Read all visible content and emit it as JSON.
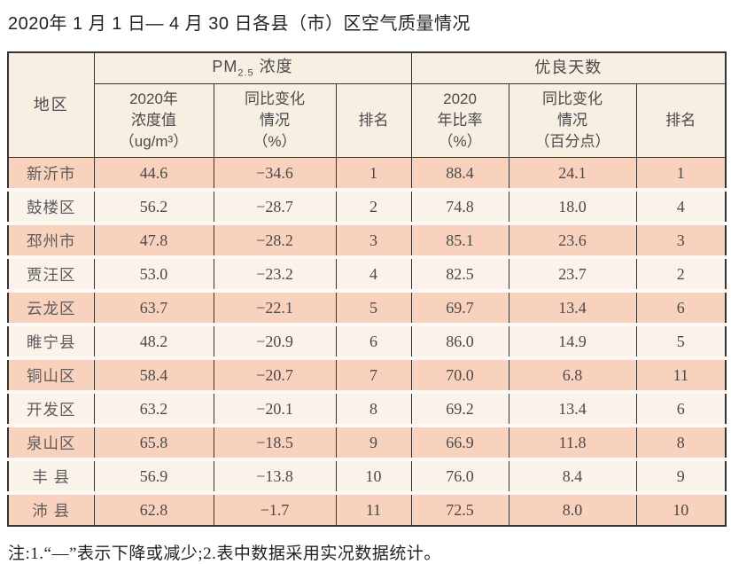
{
  "page": {
    "title": "2020年 1 月 1 日— 4 月 30 日各县（市）区空气质量情况",
    "footnote": "注:1.“—”表示下降或减少;2.表中数据采用实况数据统计。"
  },
  "colors": {
    "row_odd": "#f8d2bc",
    "row_even": "#fbf2ea",
    "header_bg": "#f8efe3",
    "border": "#343434"
  },
  "table": {
    "region_header": "地区",
    "group_headers": {
      "pm25": {
        "prefix": "PM",
        "sub": "2.5",
        "suffix": " 浓度"
      },
      "good_days": "优良天数"
    },
    "sub_headers": {
      "pm_value": "2020年\n浓度值\n（ug/m³）",
      "pm_change": "同比变化\n情况\n（%）",
      "pm_rank": "排名",
      "gd_ratio": "2020\n年比率\n（%）",
      "gd_change": "同比变化\n情况\n（百分点）",
      "gd_rank": "排名"
    },
    "rows": [
      {
        "region": "新沂市",
        "pm_value": "44.6",
        "pm_change": "−34.6",
        "pm_rank": "1",
        "gd_ratio": "88.4",
        "gd_change": "24.1",
        "gd_rank": "1"
      },
      {
        "region": "鼓楼区",
        "pm_value": "56.2",
        "pm_change": "−28.7",
        "pm_rank": "2",
        "gd_ratio": "74.8",
        "gd_change": "18.0",
        "gd_rank": "4"
      },
      {
        "region": "邳州市",
        "pm_value": "47.8",
        "pm_change": "−28.2",
        "pm_rank": "3",
        "gd_ratio": "85.1",
        "gd_change": "23.6",
        "gd_rank": "3"
      },
      {
        "region": "贾汪区",
        "pm_value": "53.0",
        "pm_change": "−23.2",
        "pm_rank": "4",
        "gd_ratio": "82.5",
        "gd_change": "23.7",
        "gd_rank": "2"
      },
      {
        "region": "云龙区",
        "pm_value": "63.7",
        "pm_change": "−22.1",
        "pm_rank": "5",
        "gd_ratio": "69.7",
        "gd_change": "13.4",
        "gd_rank": "6"
      },
      {
        "region": "睢宁县",
        "pm_value": "48.2",
        "pm_change": "−20.9",
        "pm_rank": "6",
        "gd_ratio": "86.0",
        "gd_change": "14.9",
        "gd_rank": "5"
      },
      {
        "region": "铜山区",
        "pm_value": "58.4",
        "pm_change": "−20.7",
        "pm_rank": "7",
        "gd_ratio": "70.0",
        "gd_change": "6.8",
        "gd_rank": "11"
      },
      {
        "region": "开发区",
        "pm_value": "63.2",
        "pm_change": "−20.1",
        "pm_rank": "8",
        "gd_ratio": "69.2",
        "gd_change": "13.4",
        "gd_rank": "6"
      },
      {
        "region": "泉山区",
        "pm_value": "65.8",
        "pm_change": "−18.5",
        "pm_rank": "9",
        "gd_ratio": "66.9",
        "gd_change": "11.8",
        "gd_rank": "8"
      },
      {
        "region": "丰 县",
        "pm_value": "56.9",
        "pm_change": "−13.8",
        "pm_rank": "10",
        "gd_ratio": "76.0",
        "gd_change": "8.4",
        "gd_rank": "9"
      },
      {
        "region": "沛 县",
        "pm_value": "62.8",
        "pm_change": "−1.7",
        "pm_rank": "11",
        "gd_ratio": "72.5",
        "gd_change": "8.0",
        "gd_rank": "10"
      }
    ]
  }
}
